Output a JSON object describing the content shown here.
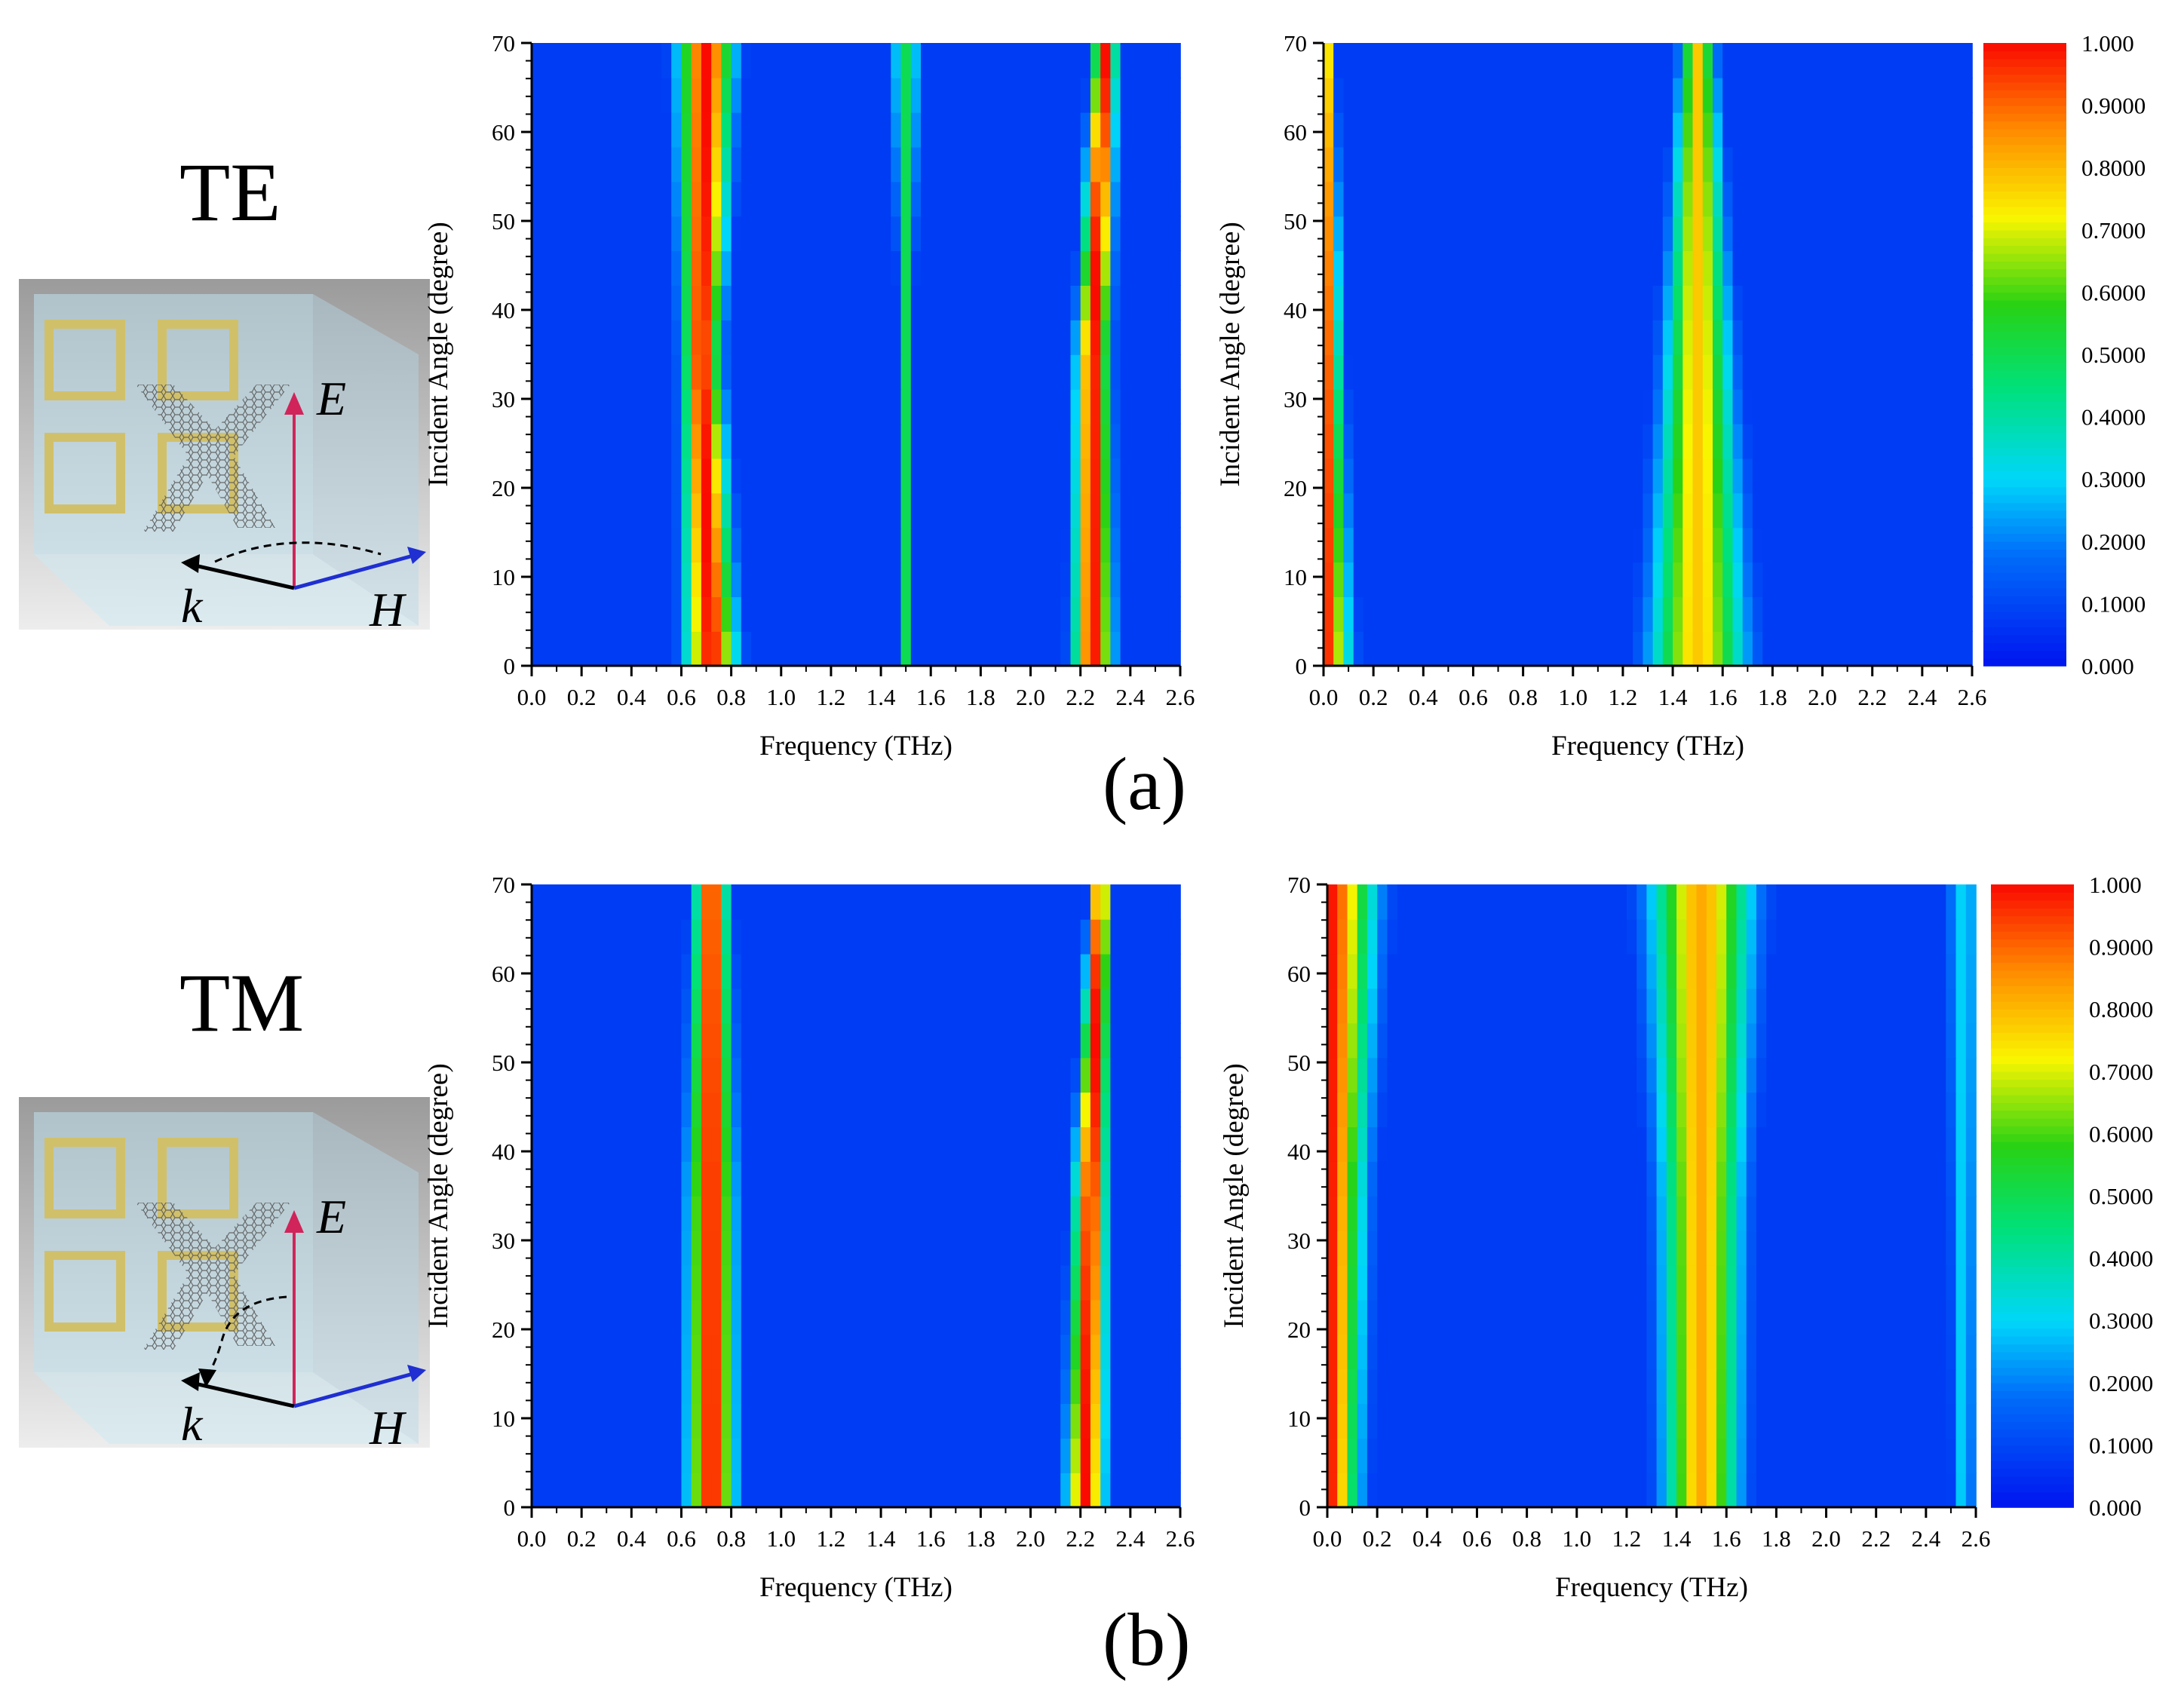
{
  "figure": {
    "row_a": {
      "mode_label": "TE",
      "panel_label": "(a)",
      "illustration": {
        "e_label": "E",
        "h_label": "H",
        "k_label": "k",
        "icon": "unit-cell-graphene-icon"
      }
    },
    "row_b": {
      "mode_label": "TM",
      "panel_label": "(b)",
      "illustration": {
        "e_label": "E",
        "h_label": "H",
        "k_label": "k",
        "icon": "unit-cell-graphene-icon"
      }
    }
  },
  "chart_data": [
    {
      "id": "te-left",
      "type": "heatmap",
      "title": "",
      "xlabel": "Frequency (THz)",
      "ylabel": "Incident Angle (degree)",
      "xlim": [
        0,
        2.6
      ],
      "ylim": [
        0,
        70
      ],
      "xticks": [
        "0.0",
        "0.2",
        "0.4",
        "0.6",
        "0.8",
        "1.0",
        "1.2",
        "1.4",
        "1.6",
        "1.8",
        "2.0",
        "2.2",
        "2.4",
        "2.6"
      ],
      "yticks": [
        "0",
        "10",
        "20",
        "30",
        "40",
        "50",
        "60",
        "70"
      ],
      "bands": [
        {
          "freq": [
            0.72,
            0.68,
            0.7
          ],
          "width": [
            0.22,
            0.16,
            0.24
          ],
          "amp": 1.0
        },
        {
          "freq": [
            1.5,
            1.5,
            1.5
          ],
          "width": [
            0.06,
            0.05,
            0.12
          ],
          "amp": 0.5
        },
        {
          "freq": [
            2.25,
            2.25,
            2.3
          ],
          "width": [
            0.17,
            0.14,
            0.1
          ],
          "amp": 1.0
        }
      ]
    },
    {
      "id": "te-right",
      "type": "heatmap",
      "title": "",
      "xlabel": "Frequency (THz)",
      "ylabel": "Incident Angle (degree)",
      "xlim": [
        0,
        2.6
      ],
      "ylim": [
        0,
        70
      ],
      "xticks": [
        "0.0",
        "0.2",
        "0.4",
        "0.6",
        "0.8",
        "1.0",
        "1.2",
        "1.4",
        "1.6",
        "1.8",
        "2.0",
        "2.2",
        "2.4",
        "2.6"
      ],
      "yticks": [
        "0",
        "10",
        "20",
        "30",
        "40",
        "50",
        "60",
        "70"
      ],
      "bands": [
        {
          "freq": [
            0.0,
            0.0,
            0.0
          ],
          "width": [
            0.22,
            0.14,
            0.08
          ],
          "amp": 1.0
        },
        {
          "freq": [
            1.5,
            1.5,
            1.5
          ],
          "width": [
            0.42,
            0.28,
            0.14
          ],
          "amp": 0.78
        }
      ],
      "colorbar": {
        "min": 0,
        "max": 1,
        "tick_labels": [
          "0.000",
          "0.1000",
          "0.2000",
          "0.3000",
          "0.4000",
          "0.5000",
          "0.6000",
          "0.7000",
          "0.8000",
          "0.9000",
          "1.000"
        ]
      }
    },
    {
      "id": "tm-left",
      "type": "heatmap",
      "title": "",
      "xlabel": "Frequency (THz)",
      "ylabel": "Incident Angle (degree)",
      "xlim": [
        0,
        2.6
      ],
      "ylim": [
        0,
        70
      ],
      "xticks": [
        "0.0",
        "0.2",
        "0.4",
        "0.6",
        "0.8",
        "1.0",
        "1.2",
        "1.4",
        "1.6",
        "1.8",
        "2.0",
        "2.2",
        "2.4",
        "2.6"
      ],
      "yticks": [
        "0",
        "10",
        "20",
        "30",
        "40",
        "50",
        "60",
        "70"
      ],
      "bands": [
        {
          "freq": [
            0.72,
            0.72,
            0.72
          ],
          "width": [
            0.2,
            0.19,
            0.14
          ],
          "amp": 1.0
        },
        {
          "freq": [
            2.22,
            2.24,
            2.28
          ],
          "width": [
            0.16,
            0.14,
            0.08
          ],
          "amp": 1.0
        }
      ]
    },
    {
      "id": "tm-right",
      "type": "heatmap",
      "title": "",
      "xlabel": "Frequency (THz)",
      "ylabel": "Incident Angle (degree)",
      "xlim": [
        0,
        2.6
      ],
      "ylim": [
        0,
        70
      ],
      "xticks": [
        "0.0",
        "0.2",
        "0.4",
        "0.6",
        "0.8",
        "1.0",
        "1.2",
        "1.4",
        "1.6",
        "1.8",
        "2.0",
        "2.2",
        "2.4",
        "2.6"
      ],
      "yticks": [
        "0",
        "10",
        "20",
        "30",
        "40",
        "50",
        "60",
        "70"
      ],
      "bands": [
        {
          "freq": [
            0.0,
            0.0,
            0.0
          ],
          "width": [
            0.26,
            0.3,
            0.4
          ],
          "amp": 1.0
        },
        {
          "freq": [
            1.5,
            1.5,
            1.5
          ],
          "width": [
            0.32,
            0.34,
            0.45
          ],
          "amp": 0.82
        },
        {
          "freq": [
            2.55,
            2.55,
            2.55
          ],
          "width": [
            0.1,
            0.12,
            0.16
          ],
          "amp": 0.3
        }
      ],
      "colorbar": {
        "min": 0,
        "max": 1,
        "tick_labels": [
          "0.000",
          "0.1000",
          "0.2000",
          "0.3000",
          "0.4000",
          "0.5000",
          "0.6000",
          "0.7000",
          "0.8000",
          "0.9000",
          "1.000"
        ]
      }
    }
  ]
}
